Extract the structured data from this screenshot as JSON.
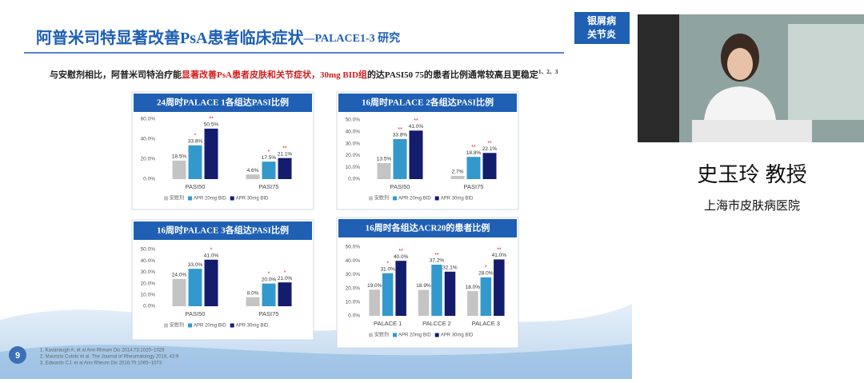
{
  "slide": {
    "title_main": "阿普米司特显著改善PsA患者临床症状",
    "title_suffix": "—PALACE1-3 研究",
    "tag_line1": "银屑病",
    "tag_line2": "关节炎",
    "subtitle": [
      "与安慰剂相比，阿普米司特治疗能",
      "显著改善PsA患者皮肤和关节症状，",
      "30mg BID组",
      "的达PASI50 75的患者比例通常较高且更稳定",
      "1、2、3"
    ],
    "references": [
      "1. Kavanaugh A, et al Ann Rheum Dis 2014;73:1020–1026",
      "2. Maurizio Cutolo et al. The Journal of Rheumatology 2016, 43:9",
      "3. Edwards CJ, et al Ann Rheum Dis 2016;75:1065–1073."
    ],
    "logo": "9"
  },
  "speaker": {
    "name": "史玉玲 教授",
    "hospital": "上海市皮肤病医院"
  },
  "chart_data": [
    {
      "type": "bar",
      "title": "24周时PALACE 1各组达PASI比例",
      "categories": [
        "PASI50",
        "PASI75"
      ],
      "ylim": [
        0,
        60
      ],
      "yticks": [
        {
          "value": 0,
          "label": "0.0%"
        },
        {
          "value": 20,
          "label": "20.0%"
        },
        {
          "value": 40,
          "label": "40.0%"
        },
        {
          "value": 60,
          "label": "60.0%"
        }
      ],
      "series": [
        {
          "name": "安慰剂",
          "color": "#c4c4c4",
          "values": [
            18.5,
            4.6
          ],
          "value_labels": [
            "18.5%",
            "4.6%"
          ]
        },
        {
          "name": "APR 20mg BID",
          "color": "#3399cc",
          "values": [
            33.8,
            17.5
          ],
          "value_labels": [
            "33.8%",
            "17.5%"
          ],
          "stars": [
            "*",
            "*"
          ]
        },
        {
          "name": "APR 30mg BID",
          "color": "#141c6e",
          "values": [
            50.5,
            21.1
          ],
          "value_labels": [
            "50.5%",
            "21.1%"
          ],
          "stars": [
            "**",
            "**"
          ]
        }
      ]
    },
    {
      "type": "bar",
      "title": "16周时PALACE 2各组达PASI比例",
      "categories": [
        "PASI50",
        "PASI75"
      ],
      "ylim": [
        0,
        50
      ],
      "yticks": [
        {
          "value": 0,
          "label": "0.0%"
        },
        {
          "value": 10,
          "label": "10.0%"
        },
        {
          "value": 20,
          "label": "20.0%"
        },
        {
          "value": 30,
          "label": "30.0%"
        },
        {
          "value": 40,
          "label": "40.0%"
        },
        {
          "value": 50,
          "label": "50.0%"
        }
      ],
      "series": [
        {
          "name": "安慰剂",
          "color": "#c4c4c4",
          "values": [
            13.5,
            2.7
          ],
          "value_labels": [
            "13.5%",
            "2.7%"
          ]
        },
        {
          "name": "APR 20mg BID",
          "color": "#3399cc",
          "values": [
            33.8,
            18.8
          ],
          "value_labels": [
            "33.8%",
            "18.8%"
          ],
          "stars": [
            "**",
            "**"
          ]
        },
        {
          "name": "APR 30mg BID",
          "color": "#141c6e",
          "values": [
            41.0,
            22.1
          ],
          "value_labels": [
            "41.0%",
            "22.1%"
          ],
          "stars": [
            "**",
            "**"
          ]
        }
      ]
    },
    {
      "type": "bar",
      "title": "16周时PALACE 3各组达PASI比例",
      "categories": [
        "PASI50",
        "PASI75"
      ],
      "ylim": [
        0,
        50
      ],
      "yticks": [
        {
          "value": 0,
          "label": "0.0%"
        },
        {
          "value": 10,
          "label": "10.0%"
        },
        {
          "value": 20,
          "label": "20.0%"
        },
        {
          "value": 30,
          "label": "30.0%"
        },
        {
          "value": 40,
          "label": "40.0%"
        },
        {
          "value": 50,
          "label": "50.0%"
        }
      ],
      "series": [
        {
          "name": "安慰剂",
          "color": "#c4c4c4",
          "values": [
            24.0,
            8.0
          ],
          "value_labels": [
            "24.0%",
            "8.0%"
          ]
        },
        {
          "name": "APR 20mg BID",
          "color": "#3399cc",
          "values": [
            33.0,
            20.0
          ],
          "value_labels": [
            "33.0%",
            "20.0%"
          ],
          "stars": [
            null,
            "*"
          ]
        },
        {
          "name": "APR 30mg BID",
          "color": "#141c6e",
          "values": [
            41.0,
            21.0
          ],
          "value_labels": [
            "41.0%",
            "21.0%"
          ],
          "stars": [
            "*",
            "*"
          ]
        }
      ]
    },
    {
      "type": "bar",
      "title": "16周时各组达ACR20的患者比例",
      "categories": [
        "PALACE 1",
        "PALCCE 2",
        "PALACE 3"
      ],
      "ylim": [
        0,
        50
      ],
      "yticks": [
        {
          "value": 0,
          "label": "0.0%"
        },
        {
          "value": 10,
          "label": "10.0%"
        },
        {
          "value": 20,
          "label": "20.0%"
        },
        {
          "value": 30,
          "label": "30.0%"
        },
        {
          "value": 40,
          "label": "40.0%"
        },
        {
          "value": 50,
          "label": "50.0%"
        }
      ],
      "series": [
        {
          "name": "安慰剂",
          "color": "#c4c4c4",
          "values": [
            19.0,
            18.9,
            18.0
          ],
          "value_labels": [
            "19.0%",
            "18.9%",
            "18.0%"
          ]
        },
        {
          "name": "APR 20mg BID",
          "color": "#3399cc",
          "values": [
            31.0,
            37.2,
            28.0
          ],
          "value_labels": [
            "31.0%",
            "37.2%",
            "28.0%"
          ],
          "stars": [
            "*",
            "**",
            "*"
          ]
        },
        {
          "name": "APR 30mg BID",
          "color": "#141c6e",
          "values": [
            40.0,
            32.1,
            41.0
          ],
          "value_labels": [
            "40.0%",
            "32.1%",
            "41.0%"
          ],
          "stars": [
            "**",
            null,
            "**"
          ]
        }
      ]
    }
  ]
}
